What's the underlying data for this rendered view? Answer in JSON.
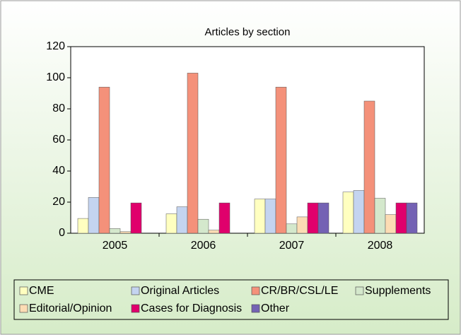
{
  "chart_data": {
    "type": "bar",
    "title": "Articles by section",
    "categories": [
      "2005",
      "2006",
      "2007",
      "2008"
    ],
    "series": [
      {
        "name": "CME",
        "color": "#ffffc0",
        "values": [
          9.5,
          12.5,
          22,
          26.5
        ]
      },
      {
        "name": "Original Articles",
        "color": "#c4d4f0",
        "values": [
          23,
          17,
          22,
          27.5
        ]
      },
      {
        "name": "CR/BR/CSL/LE",
        "color": "#f4917a",
        "values": [
          94,
          103,
          94,
          85
        ]
      },
      {
        "name": "Supplements",
        "color": "#d4e8cc",
        "values": [
          3,
          9,
          6,
          22.5
        ]
      },
      {
        "name": "Editorial/Opinion",
        "color": "#fcdcb4",
        "values": [
          1,
          2,
          10.5,
          12
        ]
      },
      {
        "name": "Cases for Diagnosis",
        "color": "#e0006c",
        "values": [
          19.5,
          19.5,
          19.5,
          19.5
        ]
      },
      {
        "name": "Other",
        "color": "#7462b4",
        "values": [
          0,
          0,
          19.5,
          19.5
        ]
      }
    ],
    "ylim": [
      0,
      120
    ],
    "yticks": [
      0,
      20,
      40,
      60,
      80,
      100,
      120
    ],
    "grid": false,
    "legend": "bottom"
  }
}
